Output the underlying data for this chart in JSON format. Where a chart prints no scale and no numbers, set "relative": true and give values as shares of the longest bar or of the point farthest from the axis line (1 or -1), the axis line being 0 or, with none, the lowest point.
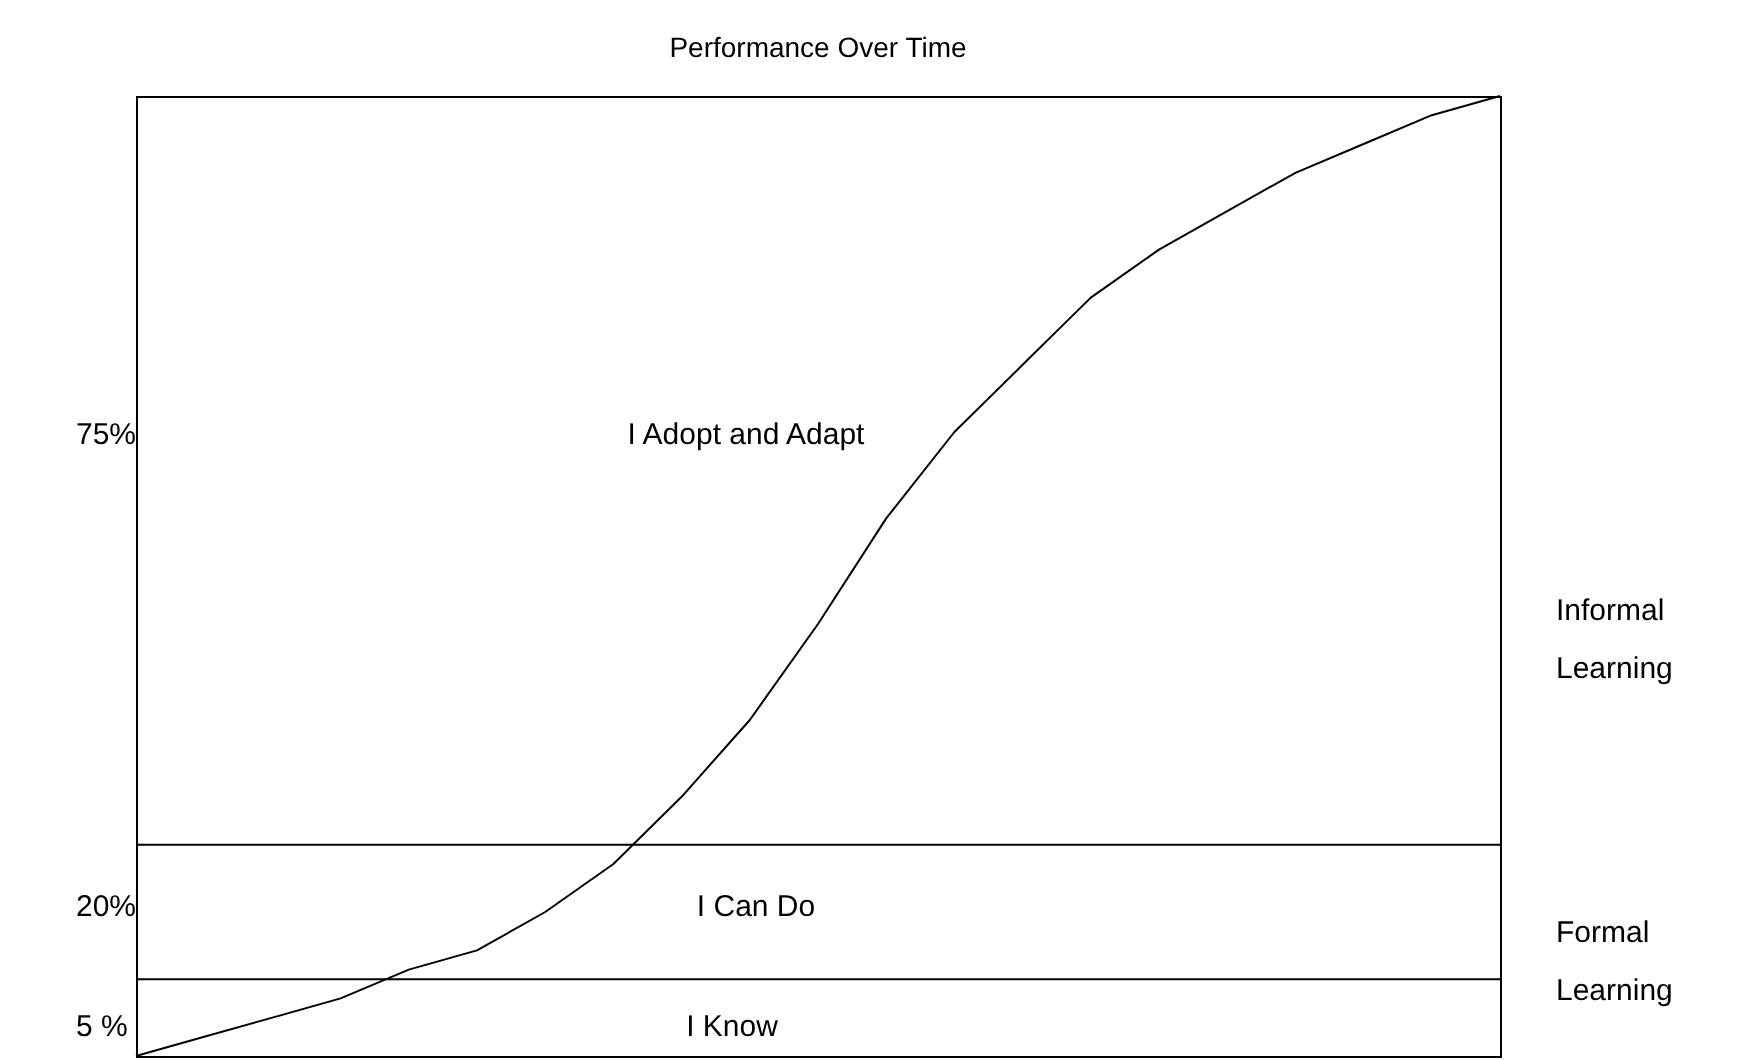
{
  "chart_data": {
    "type": "line",
    "title": "Performance Over Time",
    "relative": true,
    "categories": [
      null,
      null,
      null,
      null,
      null,
      null,
      null,
      null,
      null,
      null,
      null,
      null,
      null,
      null,
      null,
      null,
      null,
      null,
      null,
      null,
      null
    ],
    "series": [
      {
        "color": "#000000",
        "values": [
          0,
          0.02,
          0.04,
          0.06,
          0.09,
          0.11,
          0.15,
          0.2,
          0.27,
          0.35,
          0.45,
          0.56,
          0.65,
          0.72,
          0.79,
          0.84,
          0.88,
          0.92,
          0.95,
          0.98,
          1
        ]
      }
    ],
    "ref_lines": [
      {
        "axis": "y",
        "value": 0.08,
        "color": "#000000"
      },
      {
        "axis": "y",
        "value": 0.22,
        "color": "#000000"
      }
    ],
    "annotations": [
      "I Adopt and Adapt",
      "I Can Do",
      "I Know",
      "75%",
      "20%",
      "5 %",
      "Informal Learning",
      "Formal Learning"
    ],
    "marker": "none",
    "line_style": "solid"
  }
}
